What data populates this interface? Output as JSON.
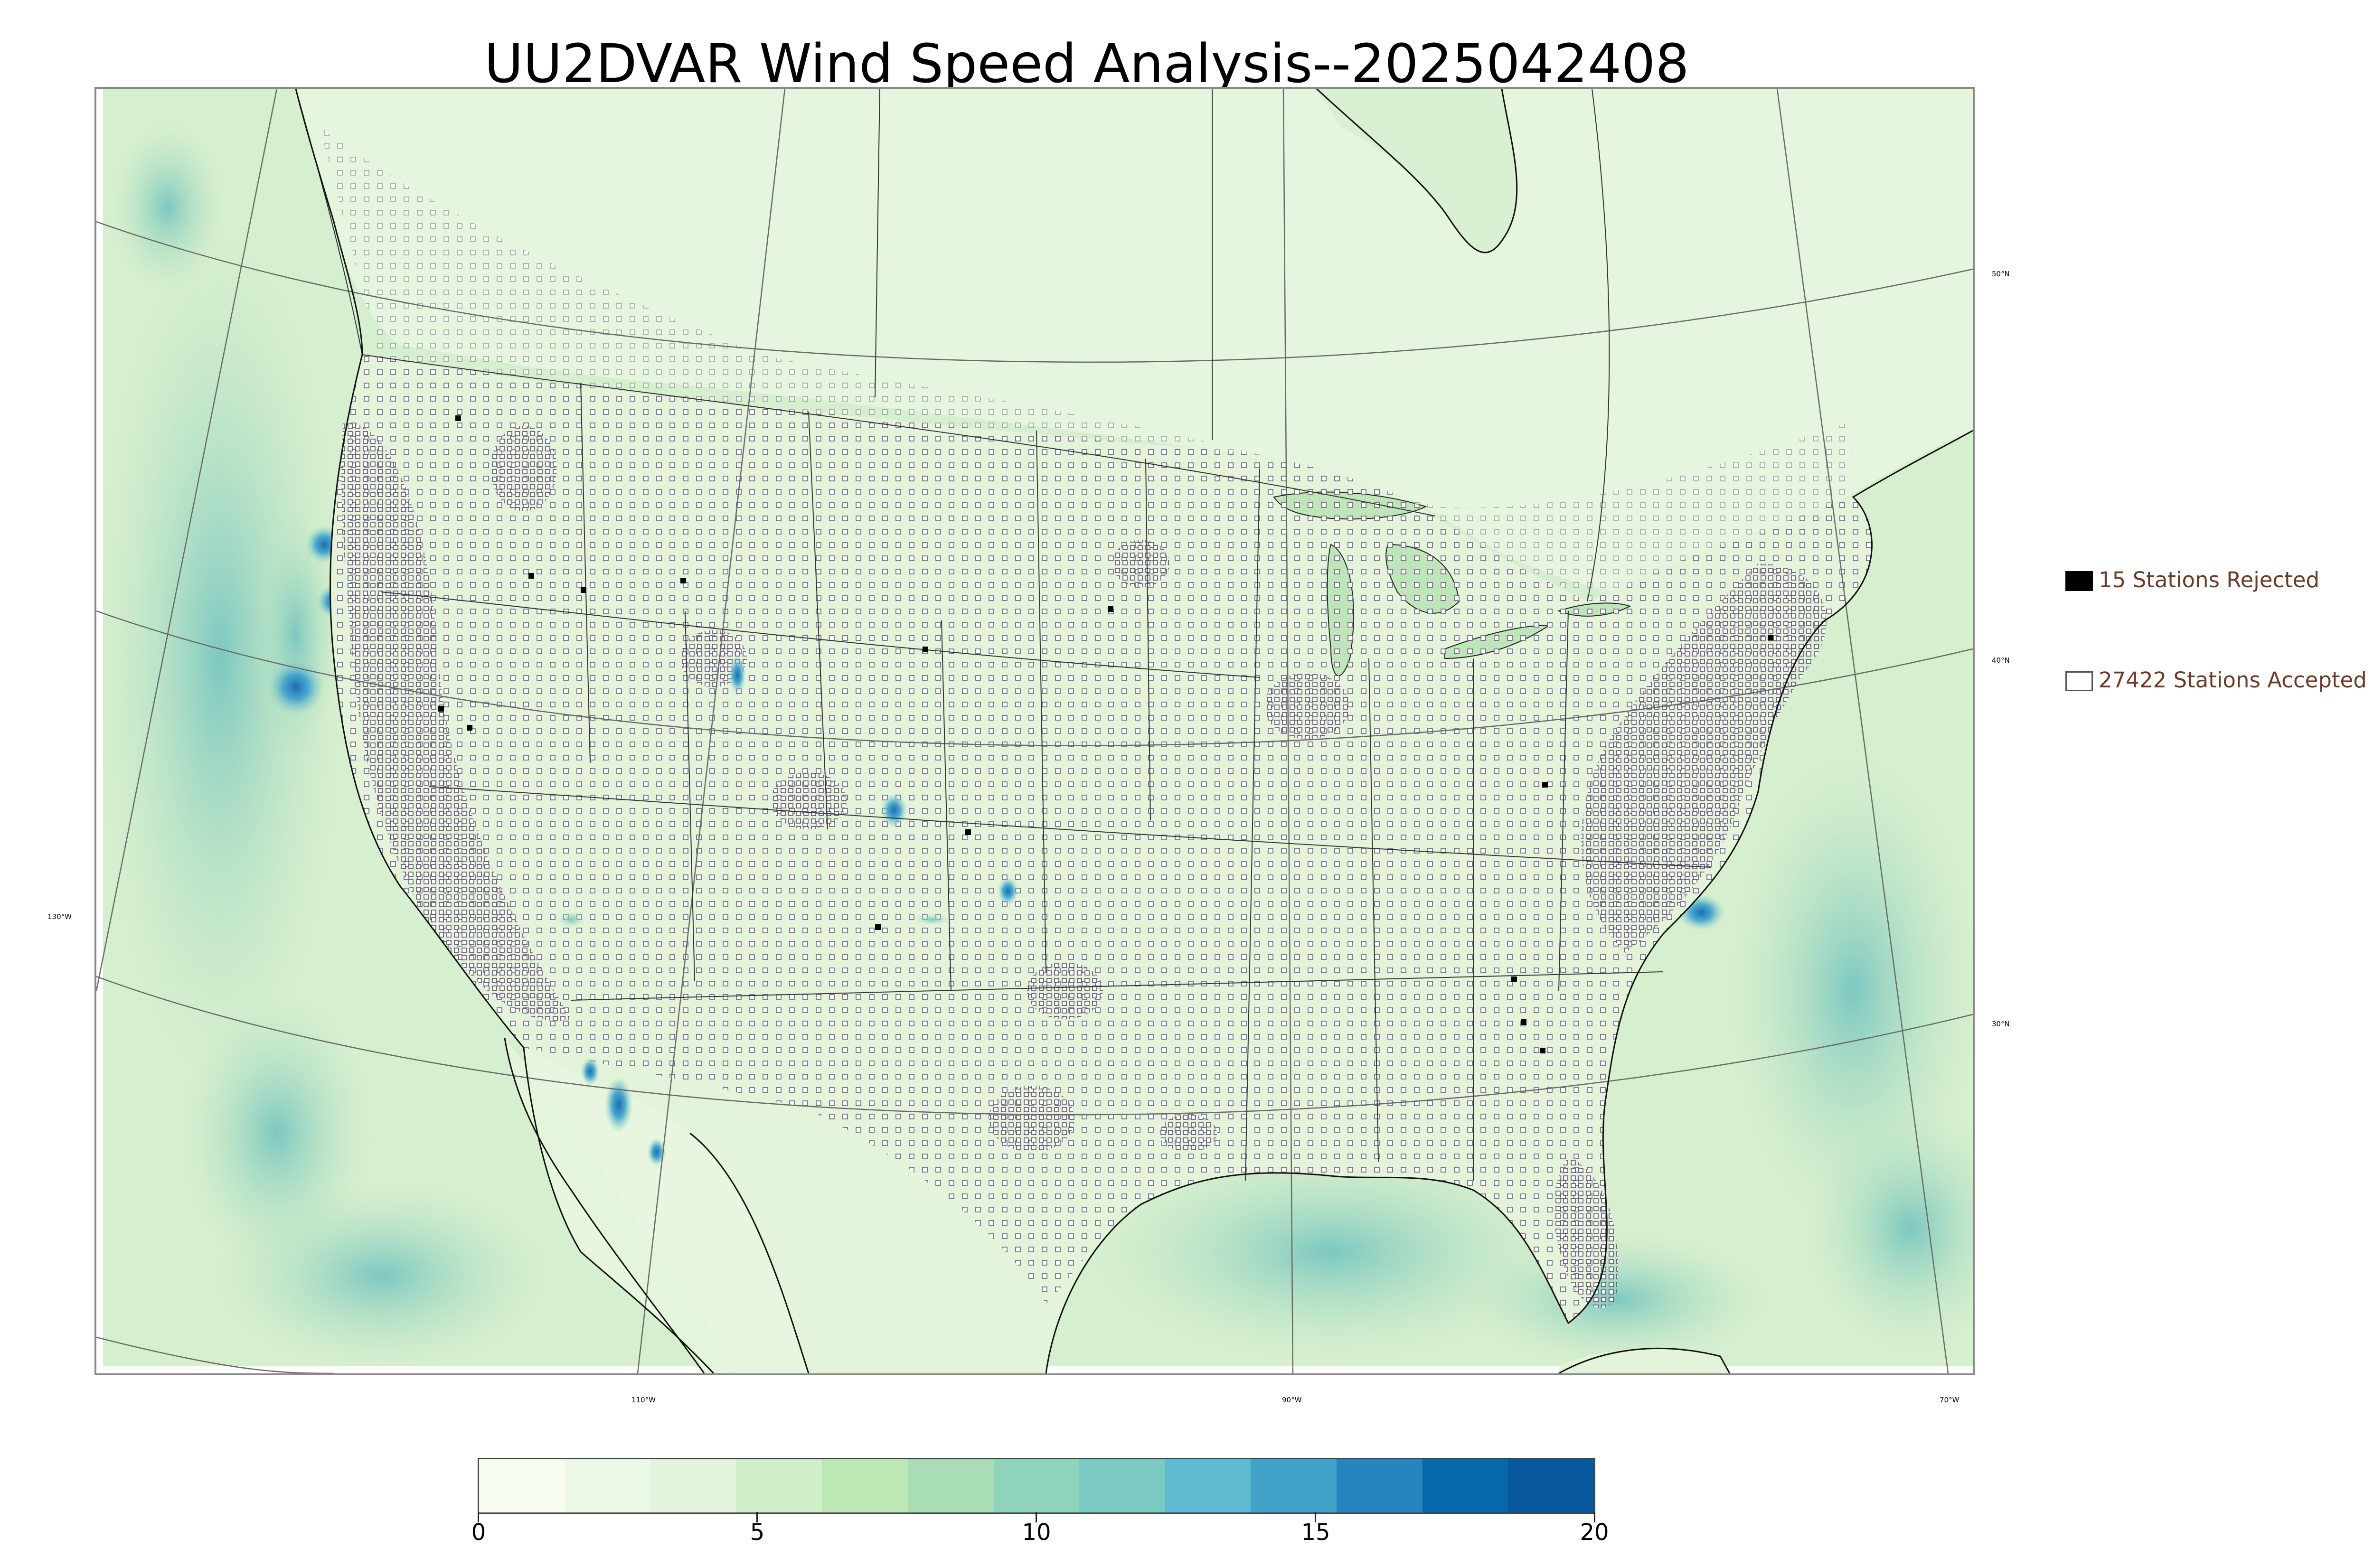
{
  "title": "UU2DVAR Wind Speed Analysis--2025042408",
  "grid_labels": {
    "lat_50": "50°N",
    "lat_40": "40°N",
    "lat_30": "30°N",
    "lon_130": "130°W",
    "lon_110": "110°W",
    "lon_90": "90°W",
    "lon_70": "70°W"
  },
  "legend": {
    "rejected": {
      "label": "15 Stations Rejected",
      "swatch_color": "#000000"
    },
    "accepted": {
      "label": "27422 Stations Accepted",
      "swatch_color": "#ffffff"
    }
  },
  "colorbar": {
    "ticks": [
      "0",
      "5",
      "10",
      "15",
      "20"
    ],
    "colors": [
      "#f7fcf0",
      "#ecf8e6",
      "#e2f4dc",
      "#d0eec8",
      "#bee7b6",
      "#a8ddb5",
      "#91d4bc",
      "#7bcbc4",
      "#5fbbd1",
      "#43a2ca",
      "#2684bf",
      "#0868ac",
      "#08589e"
    ]
  },
  "colors": {
    "land_base": "#dff2d6",
    "ocean_base": "#cfeccb",
    "strong_wind": "#2b82bd",
    "station_outline": "#5a4a6a"
  }
}
